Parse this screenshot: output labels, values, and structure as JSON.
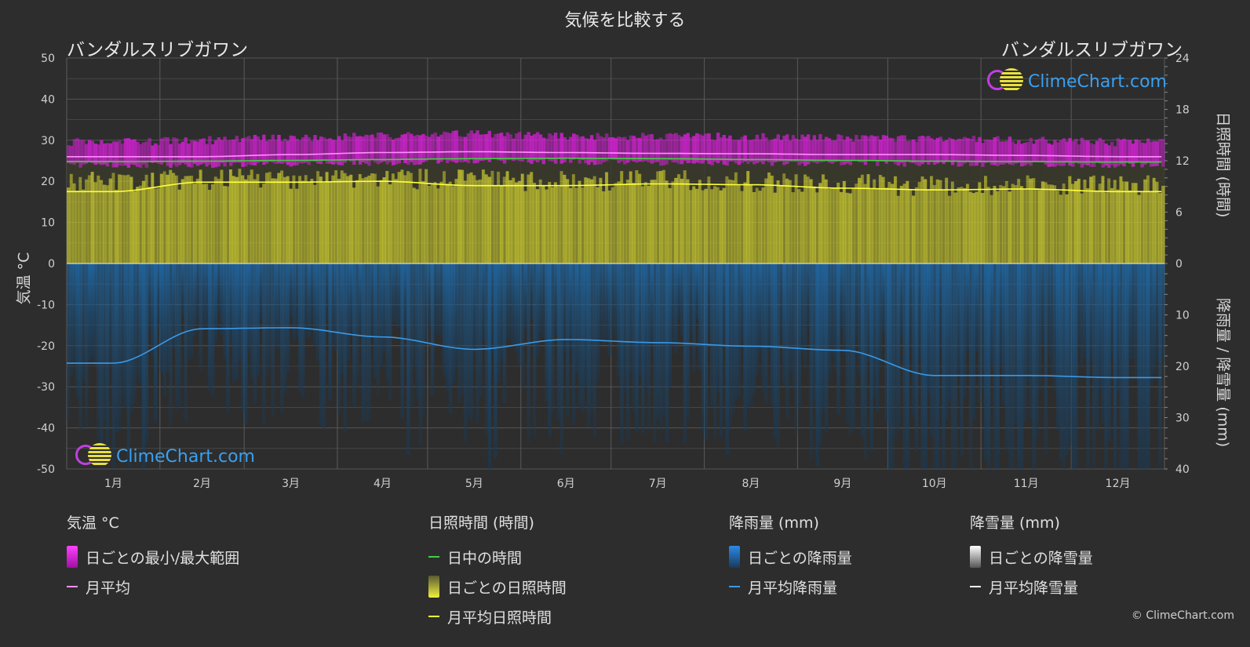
{
  "title": "気候を比較する",
  "location_left": "バンダルスリブガワン",
  "location_right": "バンダルスリブガワン",
  "brand": "ClimeChart.com",
  "copyright": "© ClimeChart.com",
  "chart_data": {
    "type": "area",
    "categories": [
      "1月",
      "2月",
      "3月",
      "4月",
      "5月",
      "6月",
      "7月",
      "8月",
      "9月",
      "10月",
      "11月",
      "12月"
    ],
    "y_left": {
      "label": "気温 °C",
      "range": [
        -50,
        50
      ],
      "ticks": [
        "50",
        "40",
        "30",
        "20",
        "10",
        "0",
        "-10",
        "-20",
        "-30",
        "-40",
        "-50"
      ]
    },
    "y_right_top": {
      "label": "日照時間 (時間)",
      "range": [
        0,
        24
      ],
      "ticks": [
        "24",
        "18",
        "12",
        "6",
        "0"
      ]
    },
    "y_right_bottom": {
      "label": "降雨量 / 降雪量 (mm)",
      "range": [
        0,
        40
      ],
      "ticks": [
        "10",
        "20",
        "30",
        "40"
      ]
    },
    "series": {
      "temp_max": [
        29.5,
        30.0,
        30.5,
        31.0,
        31.5,
        31.0,
        31.0,
        30.8,
        30.5,
        30.5,
        30.0,
        29.5
      ],
      "temp_min": [
        24.0,
        24.0,
        24.2,
        24.5,
        25.0,
        24.8,
        24.5,
        24.5,
        24.3,
        24.3,
        24.2,
        24.0
      ],
      "temp_mean": [
        26.0,
        26.0,
        26.5,
        27.0,
        27.2,
        27.0,
        26.8,
        26.7,
        26.5,
        26.5,
        26.3,
        26.0
      ],
      "daylight": [
        11.9,
        11.95,
        12.05,
        12.15,
        12.25,
        12.3,
        12.25,
        12.15,
        12.05,
        11.95,
        11.9,
        11.85
      ],
      "sunshine_daily": [
        10.8,
        11.0,
        11.2,
        11.2,
        11.0,
        10.8,
        11.0,
        10.8,
        10.5,
        10.3,
        10.3,
        10.3
      ],
      "sunshine_mean": [
        8.4,
        9.5,
        9.5,
        9.6,
        9.1,
        9.1,
        9.3,
        9.2,
        8.8,
        8.6,
        8.7,
        8.4
      ],
      "rain_mean": [
        19.4,
        12.7,
        12.5,
        14.3,
        16.7,
        14.8,
        15.4,
        16.1,
        16.9,
        21.8,
        21.8,
        22.2
      ]
    },
    "grid": true
  },
  "legend": {
    "temperature": {
      "title": "気温 °C",
      "items": [
        "日ごとの最小/最大範囲",
        "月平均"
      ]
    },
    "sunshine": {
      "title": "日照時間 (時間)",
      "items": [
        "日中の時間",
        "日ごとの日照時間",
        "月平均日照時間"
      ]
    },
    "rain": {
      "title": "降雨量 (mm)",
      "items": [
        "日ごとの降雨量",
        "月平均降雨量"
      ]
    },
    "snow": {
      "title": "降雪量 (mm)",
      "items": [
        "日ごとの降雪量",
        "月平均降雪量"
      ]
    }
  },
  "colors": {
    "temp_range": "#e020e0",
    "temp_mean": "#ff90ff",
    "daylight": "#40d040",
    "sunshine": "#c8c830",
    "sunshine_mean": "#ffff40",
    "rain": "#1a5a90",
    "rain_mean": "#3a9ae8",
    "snow": "#ffffff"
  }
}
